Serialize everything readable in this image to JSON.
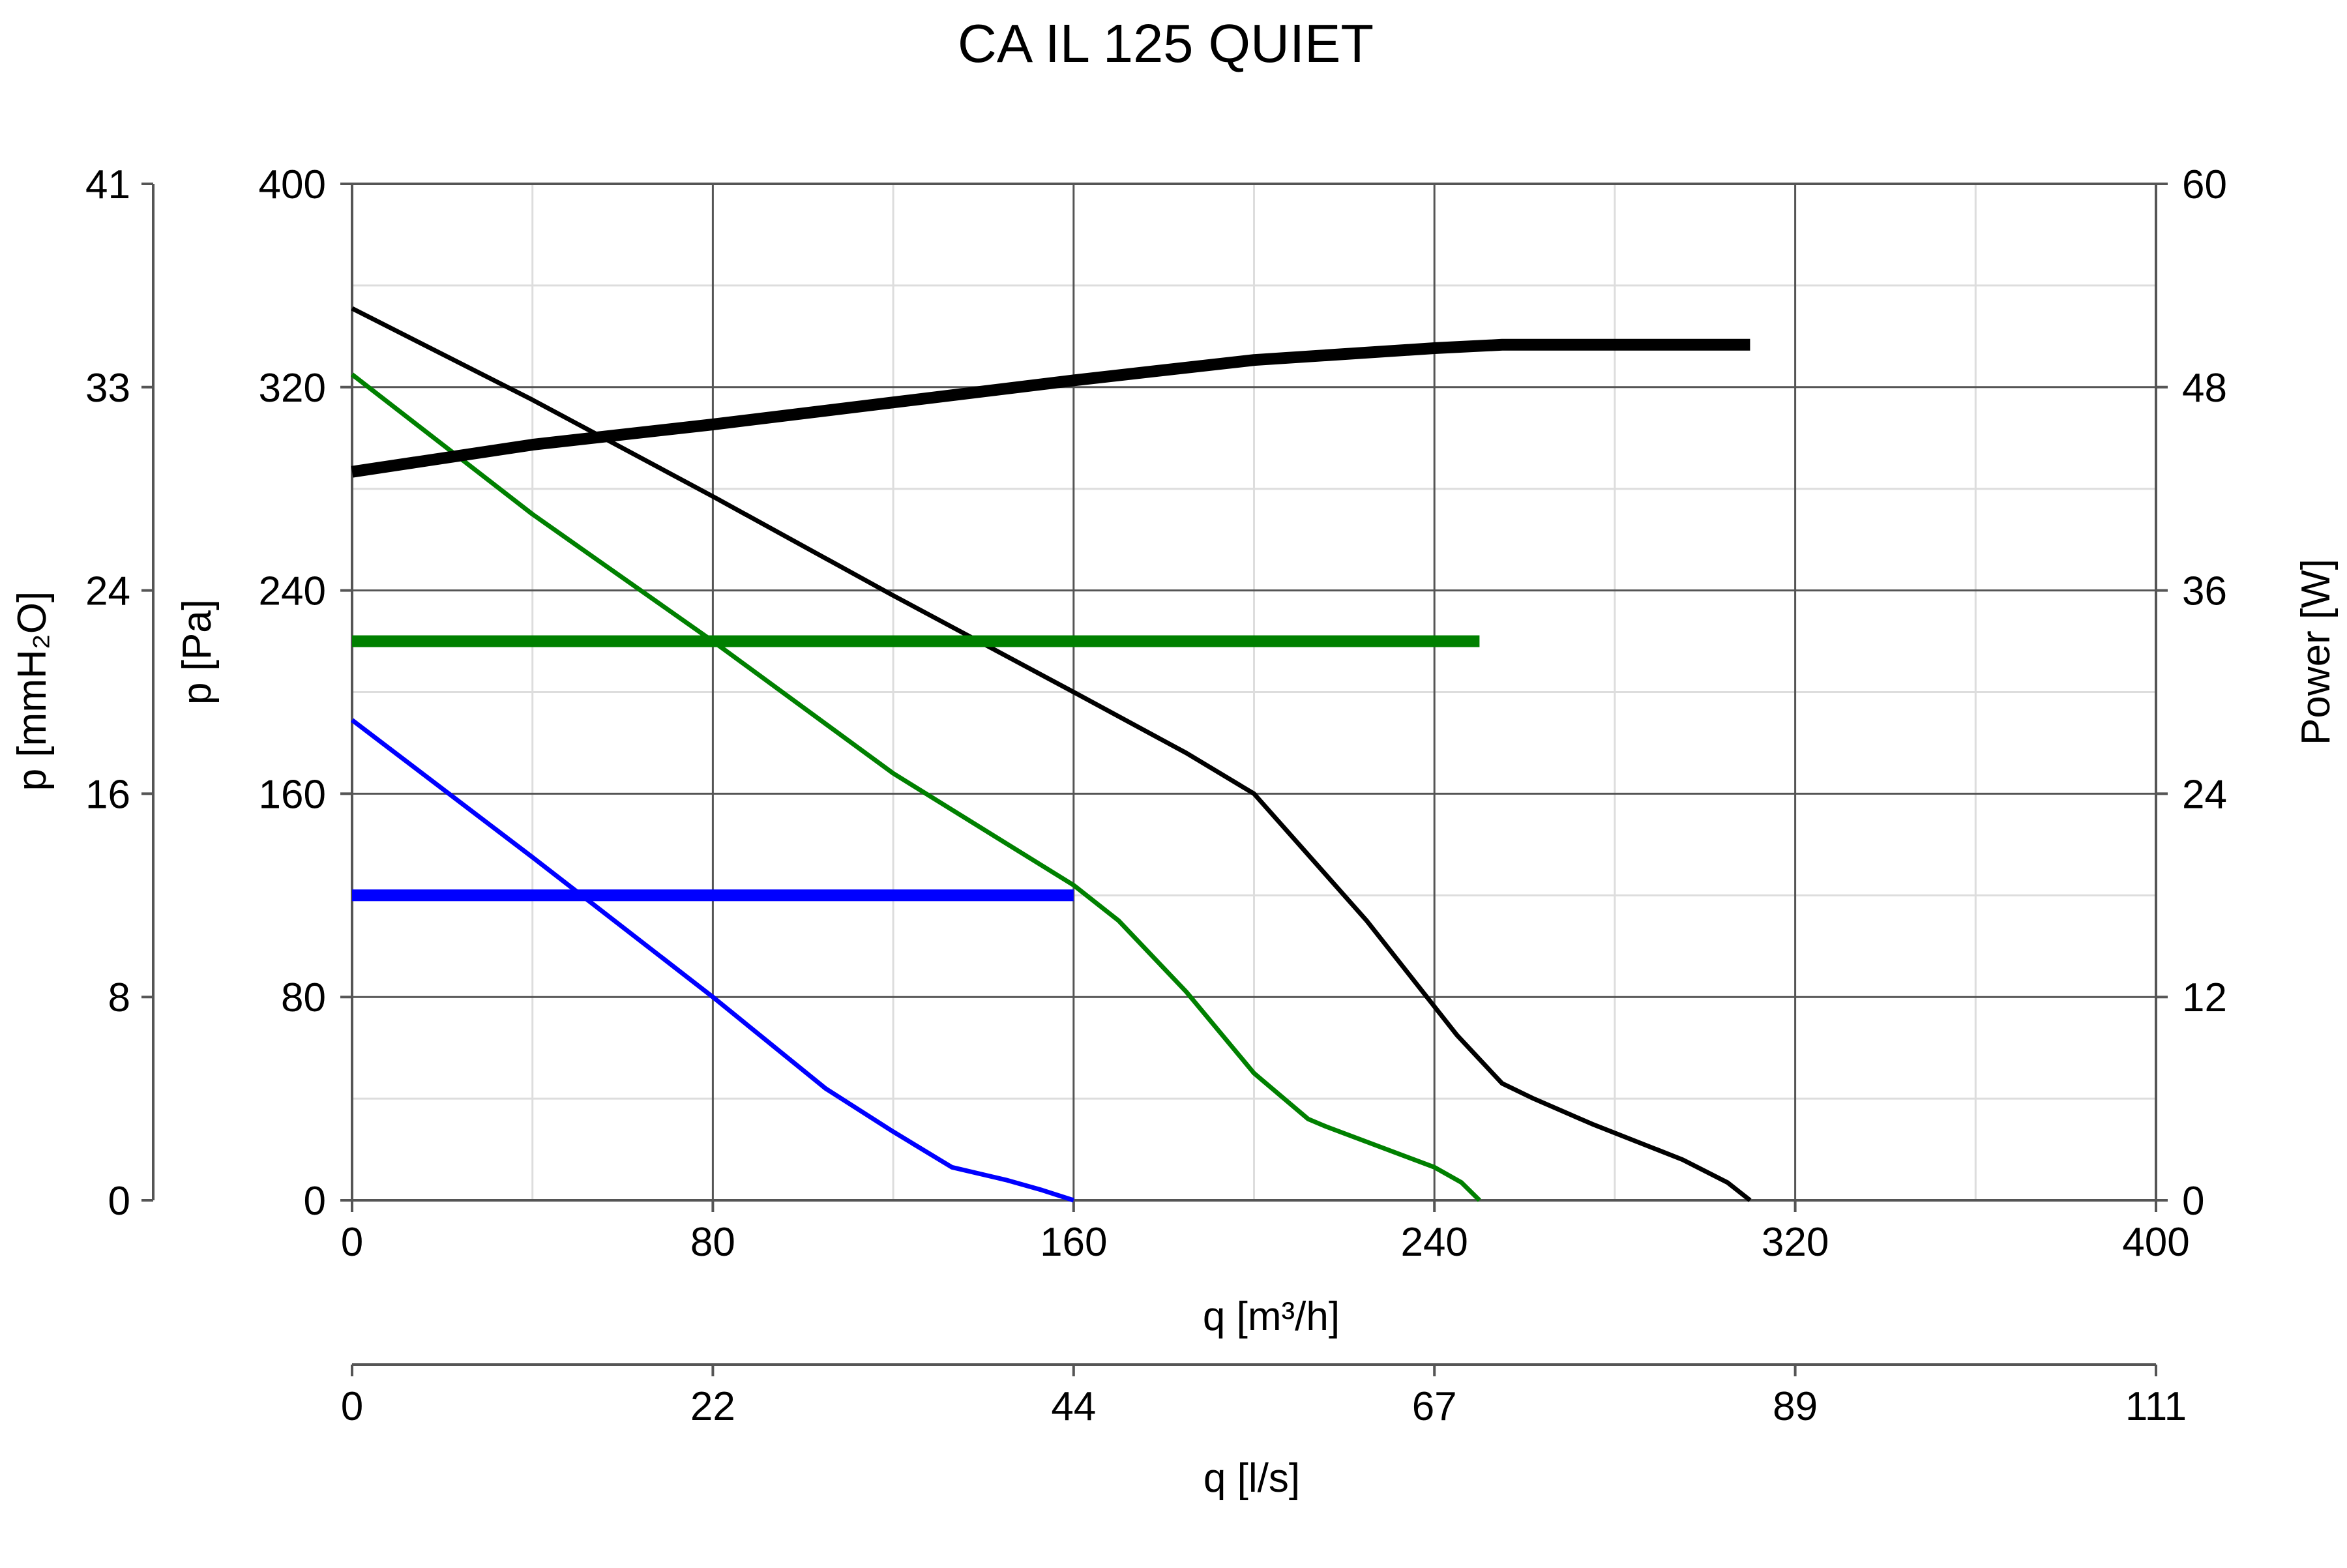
{
  "chart_data": {
    "type": "line",
    "title": "CA IL 125 QUIET",
    "xlabel": "q [m³/h]",
    "x2label": "q [l/s]",
    "ylabel": "p [Pa]",
    "y2label": "p [mmH₂O]",
    "y3label": "Power [W]",
    "xlim": [
      0,
      400
    ],
    "ylim": [
      0,
      400
    ],
    "powerlim": [
      0,
      60
    ],
    "grid": true,
    "x_ticks": [
      "0",
      "80",
      "160",
      "240",
      "320",
      "400"
    ],
    "x_tick_values": [
      0,
      80,
      160,
      240,
      320,
      400
    ],
    "x2_ticks": [
      "0",
      "22",
      "44",
      "67",
      "89",
      "111"
    ],
    "y_ticks": [
      "0",
      "80",
      "160",
      "240",
      "320",
      "400"
    ],
    "y_tick_values": [
      0,
      80,
      160,
      240,
      320,
      400
    ],
    "y2_ticks": [
      "0",
      "8",
      "16",
      "24",
      "33",
      "41"
    ],
    "y3_ticks": [
      "0",
      "12",
      "24",
      "36",
      "48",
      "60"
    ],
    "y3_tick_values": [
      0,
      12,
      24,
      36,
      48,
      60
    ],
    "pressure_series": [
      {
        "color": "#000000",
        "x": [
          0,
          40,
          80,
          120,
          160,
          185,
          200,
          205,
          225,
          245,
          255,
          262,
          275,
          295,
          305,
          310
        ],
        "y": [
          351,
          315,
          277,
          238,
          200,
          176,
          160,
          150,
          110,
          65,
          46,
          40,
          30,
          16,
          7,
          0
        ]
      },
      {
        "color": "#008000",
        "x": [
          0,
          40,
          80,
          120,
          160,
          170,
          185,
          200,
          212,
          216,
          240,
          246,
          250
        ],
        "y": [
          325,
          270,
          220,
          168,
          124,
          110,
          82,
          50,
          32,
          29,
          13,
          7,
          0
        ]
      },
      {
        "color": "#0000ff",
        "x": [
          0,
          40,
          80,
          105,
          120,
          133,
          145,
          153,
          160
        ],
        "y": [
          189,
          135,
          80,
          44,
          27,
          13,
          8,
          4,
          0
        ]
      }
    ],
    "power_series": [
      {
        "color": "#000000",
        "x": [
          0,
          40,
          80,
          120,
          160,
          200,
          240,
          255,
          310
        ],
        "y": [
          43,
          44.6,
          45.8,
          47.1,
          48.4,
          49.6,
          50.3,
          50.5,
          50.5
        ]
      },
      {
        "color": "#008000",
        "x": [
          0,
          250
        ],
        "y": [
          33,
          33
        ]
      },
      {
        "color": "#0000ff",
        "x": [
          0,
          160
        ],
        "y": [
          18,
          18
        ]
      }
    ]
  }
}
